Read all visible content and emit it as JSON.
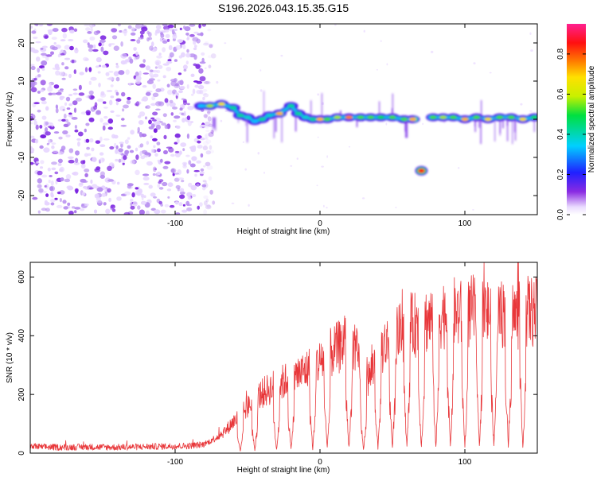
{
  "title": "S196.2026.043.15.35.G15",
  "chart_data": [
    {
      "type": "heatmap",
      "xlabel": "Height of straight line (km)",
      "ylabel": "Frequency (Hz)",
      "xlim": [
        -200,
        150
      ],
      "ylim": [
        -25,
        25
      ],
      "xticks": [
        -100,
        0,
        100
      ],
      "xtick_labels": [
        "-100",
        "0",
        "100"
      ],
      "yticks": [
        20,
        10,
        0,
        -10,
        -20
      ],
      "ytick_labels": [
        "20",
        "10",
        "0",
        "-10",
        "-20"
      ],
      "colorbar": {
        "label": "Normalized spectral amplitude",
        "range": [
          0,
          0.95
        ],
        "ticks": [
          0.0,
          0.2,
          0.4,
          0.6,
          0.8
        ],
        "tick_labels": [
          "0.0",
          "0.2",
          "0.4",
          "0.6",
          "0.8"
        ]
      },
      "noise_region_x": [
        -200,
        -80
      ],
      "trace": [
        {
          "x": -82,
          "f": 3.5,
          "a": 0.35
        },
        {
          "x": -76,
          "f": 3.5,
          "a": 0.6
        },
        {
          "x": -68,
          "f": 4.0,
          "a": 0.7
        },
        {
          "x": -60,
          "f": 3.0,
          "a": 0.45
        },
        {
          "x": -55,
          "f": 1.0,
          "a": 0.45
        },
        {
          "x": -50,
          "f": 0.5,
          "a": 0.4
        },
        {
          "x": -45,
          "f": -0.5,
          "a": 0.35
        },
        {
          "x": -40,
          "f": 0.0,
          "a": 0.45
        },
        {
          "x": -35,
          "f": 1.0,
          "a": 0.4
        },
        {
          "x": -28,
          "f": 1.5,
          "a": 0.75
        },
        {
          "x": -20,
          "f": 3.5,
          "a": 0.45
        },
        {
          "x": -15,
          "f": 1.5,
          "a": 0.45
        },
        {
          "x": -10,
          "f": 0.5,
          "a": 0.4
        },
        {
          "x": -5,
          "f": 0.0,
          "a": 0.45
        },
        {
          "x": 0,
          "f": 0.0,
          "a": 0.75
        },
        {
          "x": 5,
          "f": 0.0,
          "a": 0.55
        },
        {
          "x": 12,
          "f": 0.5,
          "a": 0.6
        },
        {
          "x": 20,
          "f": 0.5,
          "a": 0.8
        },
        {
          "x": 28,
          "f": 0.5,
          "a": 0.55
        },
        {
          "x": 35,
          "f": 0.5,
          "a": 0.55
        },
        {
          "x": 42,
          "f": 0.5,
          "a": 0.5
        },
        {
          "x": 50,
          "f": 0.5,
          "a": 0.55
        },
        {
          "x": 58,
          "f": 0.0,
          "a": 0.55
        },
        {
          "x": 64,
          "f": 0.0,
          "a": 0.75
        },
        {
          "x": 70,
          "f": -13.5,
          "a": 0.9
        },
        {
          "x": 78,
          "f": 0.5,
          "a": 0.55
        },
        {
          "x": 85,
          "f": 0.5,
          "a": 0.6
        },
        {
          "x": 92,
          "f": 0.5,
          "a": 0.55
        },
        {
          "x": 100,
          "f": 0.0,
          "a": 0.75
        },
        {
          "x": 108,
          "f": 0.5,
          "a": 0.55
        },
        {
          "x": 116,
          "f": 0.0,
          "a": 0.7
        },
        {
          "x": 124,
          "f": 0.5,
          "a": 0.55
        },
        {
          "x": 132,
          "f": 0.5,
          "a": 0.55
        },
        {
          "x": 140,
          "f": 0.0,
          "a": 0.7
        },
        {
          "x": 148,
          "f": 0.5,
          "a": 0.5
        }
      ]
    },
    {
      "type": "line",
      "xlabel": "Height of straight line (km)",
      "ylabel": "SNR (10 * v/v)",
      "xlim": [
        -200,
        150
      ],
      "ylim": [
        0,
        650
      ],
      "xticks": [
        -100,
        0,
        100
      ],
      "xtick_labels": [
        "-100",
        "0",
        "100"
      ],
      "yticks": [
        0,
        200,
        400,
        600
      ],
      "ytick_labels": [
        "0",
        "200",
        "400",
        "600"
      ],
      "color": "#e8373a",
      "series": [
        {
          "name": "SNR",
          "x": [
            -200,
            -180,
            -160,
            -140,
            -120,
            -100,
            -90,
            -80,
            -75,
            -70,
            -65,
            -60,
            -55,
            -50,
            -45,
            -40,
            -35,
            -30,
            -25,
            -20,
            -15,
            -10,
            -5,
            0,
            5,
            10,
            15,
            20,
            25,
            30,
            35,
            40,
            45,
            50,
            55,
            60,
            65,
            70,
            75,
            80,
            85,
            90,
            95,
            100,
            105,
            110,
            115,
            120,
            125,
            130,
            135,
            140,
            145,
            150
          ],
          "values": [
            22,
            20,
            21,
            20,
            22,
            24,
            25,
            30,
            45,
            60,
            80,
            110,
            130,
            160,
            190,
            210,
            225,
            240,
            250,
            265,
            275,
            290,
            305,
            320,
            340,
            360,
            380,
            395,
            360,
            220,
            280,
            350,
            380,
            400,
            420,
            440,
            450,
            460,
            470,
            480,
            490,
            500,
            490,
            480,
            500,
            510,
            490,
            500,
            490,
            500,
            480,
            490,
            500,
            490
          ]
        }
      ],
      "dips_x": [
        -55,
        -45,
        -30,
        -20,
        -5,
        5,
        20,
        30,
        40,
        50,
        60,
        70,
        80,
        90,
        100,
        110,
        120,
        130,
        140
      ]
    }
  ]
}
